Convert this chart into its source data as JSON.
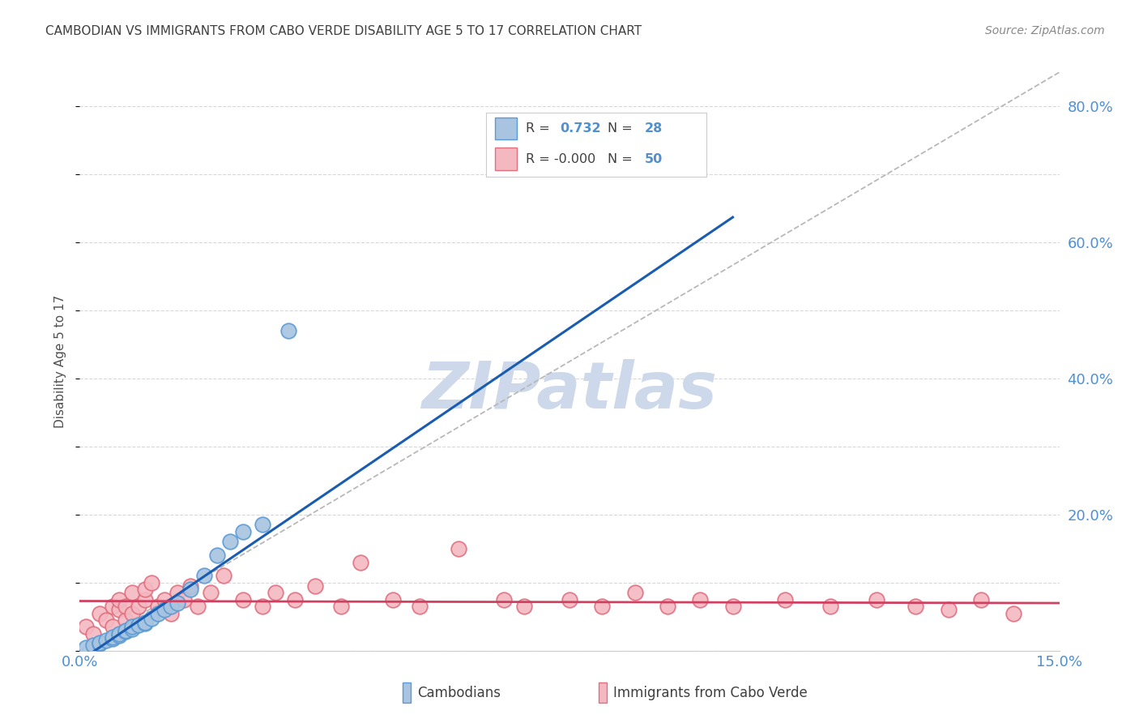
{
  "title": "CAMBODIAN VS IMMIGRANTS FROM CABO VERDE DISABILITY AGE 5 TO 17 CORRELATION CHART",
  "source": "Source: ZipAtlas.com",
  "ylabel": "Disability Age 5 to 17",
  "xmin": 0.0,
  "xmax": 0.15,
  "ymin": 0.0,
  "ymax": 0.85,
  "yticks": [
    0.0,
    0.2,
    0.4,
    0.6,
    0.8
  ],
  "ytick_labels": [
    "",
    "20.0%",
    "40.0%",
    "60.0%",
    "80.0%"
  ],
  "xticks": [
    0.0,
    0.03,
    0.06,
    0.09,
    0.12,
    0.15
  ],
  "xtick_labels": [
    "0.0%",
    "",
    "",
    "",
    "",
    "15.0%"
  ],
  "cambodian_color": "#a8c4e0",
  "cambodian_edge": "#5b9bd5",
  "caboverde_color": "#f4b8c1",
  "caboverde_edge": "#e07080",
  "trend_cambodian_color": "#1a5cb0",
  "trend_caboverde_color": "#d04060",
  "ref_line_color": "#b8b8b8",
  "background_color": "#ffffff",
  "grid_color": "#d8d8d8",
  "title_color": "#404040",
  "axis_label_color": "#505050",
  "tick_color": "#5090d0",
  "watermark_color": "#cdd9ea",
  "cambodian_x": [
    0.001,
    0.002,
    0.003,
    0.003,
    0.004,
    0.005,
    0.005,
    0.006,
    0.006,
    0.007,
    0.007,
    0.008,
    0.008,
    0.009,
    0.01,
    0.01,
    0.011,
    0.012,
    0.013,
    0.014,
    0.015,
    0.017,
    0.019,
    0.021,
    0.023,
    0.025,
    0.028,
    0.032
  ],
  "cambodian_y": [
    0.005,
    0.008,
    0.01,
    0.012,
    0.015,
    0.018,
    0.02,
    0.022,
    0.025,
    0.028,
    0.03,
    0.032,
    0.035,
    0.038,
    0.04,
    0.042,
    0.048,
    0.055,
    0.06,
    0.065,
    0.07,
    0.09,
    0.11,
    0.14,
    0.16,
    0.175,
    0.185,
    0.47
  ],
  "caboverde_x": [
    0.001,
    0.002,
    0.003,
    0.004,
    0.005,
    0.005,
    0.006,
    0.006,
    0.007,
    0.007,
    0.008,
    0.008,
    0.009,
    0.01,
    0.01,
    0.011,
    0.012,
    0.013,
    0.014,
    0.015,
    0.016,
    0.017,
    0.018,
    0.02,
    0.022,
    0.025,
    0.028,
    0.03,
    0.033,
    0.036,
    0.04,
    0.043,
    0.048,
    0.052,
    0.058,
    0.065,
    0.068,
    0.075,
    0.08,
    0.085,
    0.09,
    0.095,
    0.1,
    0.108,
    0.115,
    0.122,
    0.128,
    0.133,
    0.138,
    0.143
  ],
  "caboverde_y": [
    0.035,
    0.025,
    0.055,
    0.045,
    0.065,
    0.035,
    0.06,
    0.075,
    0.045,
    0.065,
    0.085,
    0.055,
    0.065,
    0.075,
    0.09,
    0.1,
    0.065,
    0.075,
    0.055,
    0.085,
    0.075,
    0.095,
    0.065,
    0.085,
    0.11,
    0.075,
    0.065,
    0.085,
    0.075,
    0.095,
    0.065,
    0.13,
    0.075,
    0.065,
    0.15,
    0.075,
    0.065,
    0.075,
    0.065,
    0.085,
    0.065,
    0.075,
    0.065,
    0.075,
    0.065,
    0.075,
    0.065,
    0.06,
    0.075,
    0.055
  ],
  "trend_cam_x0": 0.0,
  "trend_cam_y0": -0.015,
  "trend_cam_x1": 0.1,
  "trend_cam_y1": 0.637,
  "trend_cv_x0": 0.0,
  "trend_cv_y0": 0.073,
  "trend_cv_x1": 0.15,
  "trend_cv_y1": 0.07
}
